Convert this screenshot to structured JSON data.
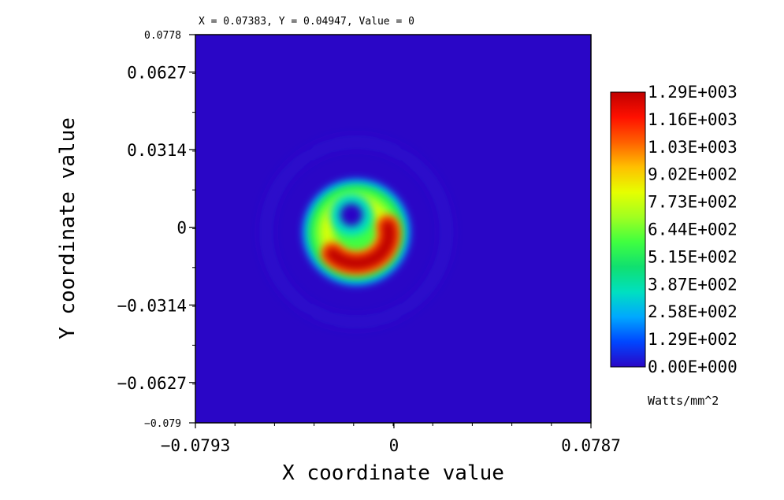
{
  "readout": "X = 0.07383, Y = 0.04947, Value = 0",
  "chart_data": {
    "type": "heatmap",
    "title": "",
    "xlabel": "X coordinate value",
    "ylabel": "Y coordinate value",
    "xlim": [
      -0.0793,
      0.0787
    ],
    "ylim": [
      -0.079,
      0.0778
    ],
    "x_ticks": [
      {
        "value": -0.0793,
        "label": "−0.0793"
      },
      {
        "value": 0,
        "label": "0"
      },
      {
        "value": 0.0787,
        "label": "0.0787"
      }
    ],
    "y_ticks": [
      {
        "value": 0.0778,
        "label": "0.0778",
        "style": "small"
      },
      {
        "value": 0.0627,
        "label": "0.0627",
        "style": "big"
      },
      {
        "value": 0.0314,
        "label": "0.0314",
        "style": "big"
      },
      {
        "value": 0,
        "label": "0",
        "style": "big"
      },
      {
        "value": -0.0314,
        "label": "−0.0314",
        "style": "big"
      },
      {
        "value": -0.0627,
        "label": "−0.0627",
        "style": "big"
      },
      {
        "value": -0.079,
        "label": "−0.079",
        "style": "small"
      }
    ],
    "colorbar": {
      "unit": "Watts/mm^2",
      "min": 0,
      "max": 1290,
      "labels": [
        "1.29E+003",
        "1.16E+003",
        "1.03E+003",
        "9.02E+002",
        "7.73E+002",
        "6.44E+002",
        "5.15E+002",
        "3.87E+002",
        "2.58E+002",
        "1.29E+002",
        "0.00E+000"
      ],
      "colors": [
        "#2a06c6",
        "#0046ff",
        "#00a8ff",
        "#00e0c0",
        "#10e070",
        "#40ff40",
        "#a0ff20",
        "#e6ff00",
        "#ffc000",
        "#ff6000",
        "#ff1000",
        "#c00000"
      ]
    },
    "beam": {
      "background_value": 0,
      "center": [
        -0.015,
        -0.002
      ],
      "ring_radius": 0.021,
      "ring_value": 700,
      "hole_center": [
        -0.017,
        0.005
      ],
      "hole_radius": 0.0045,
      "hot_spot_center": [
        -0.005,
        -0.0065
      ],
      "hot_spot_value": 1270,
      "outer_halo_radius": 0.036
    }
  }
}
